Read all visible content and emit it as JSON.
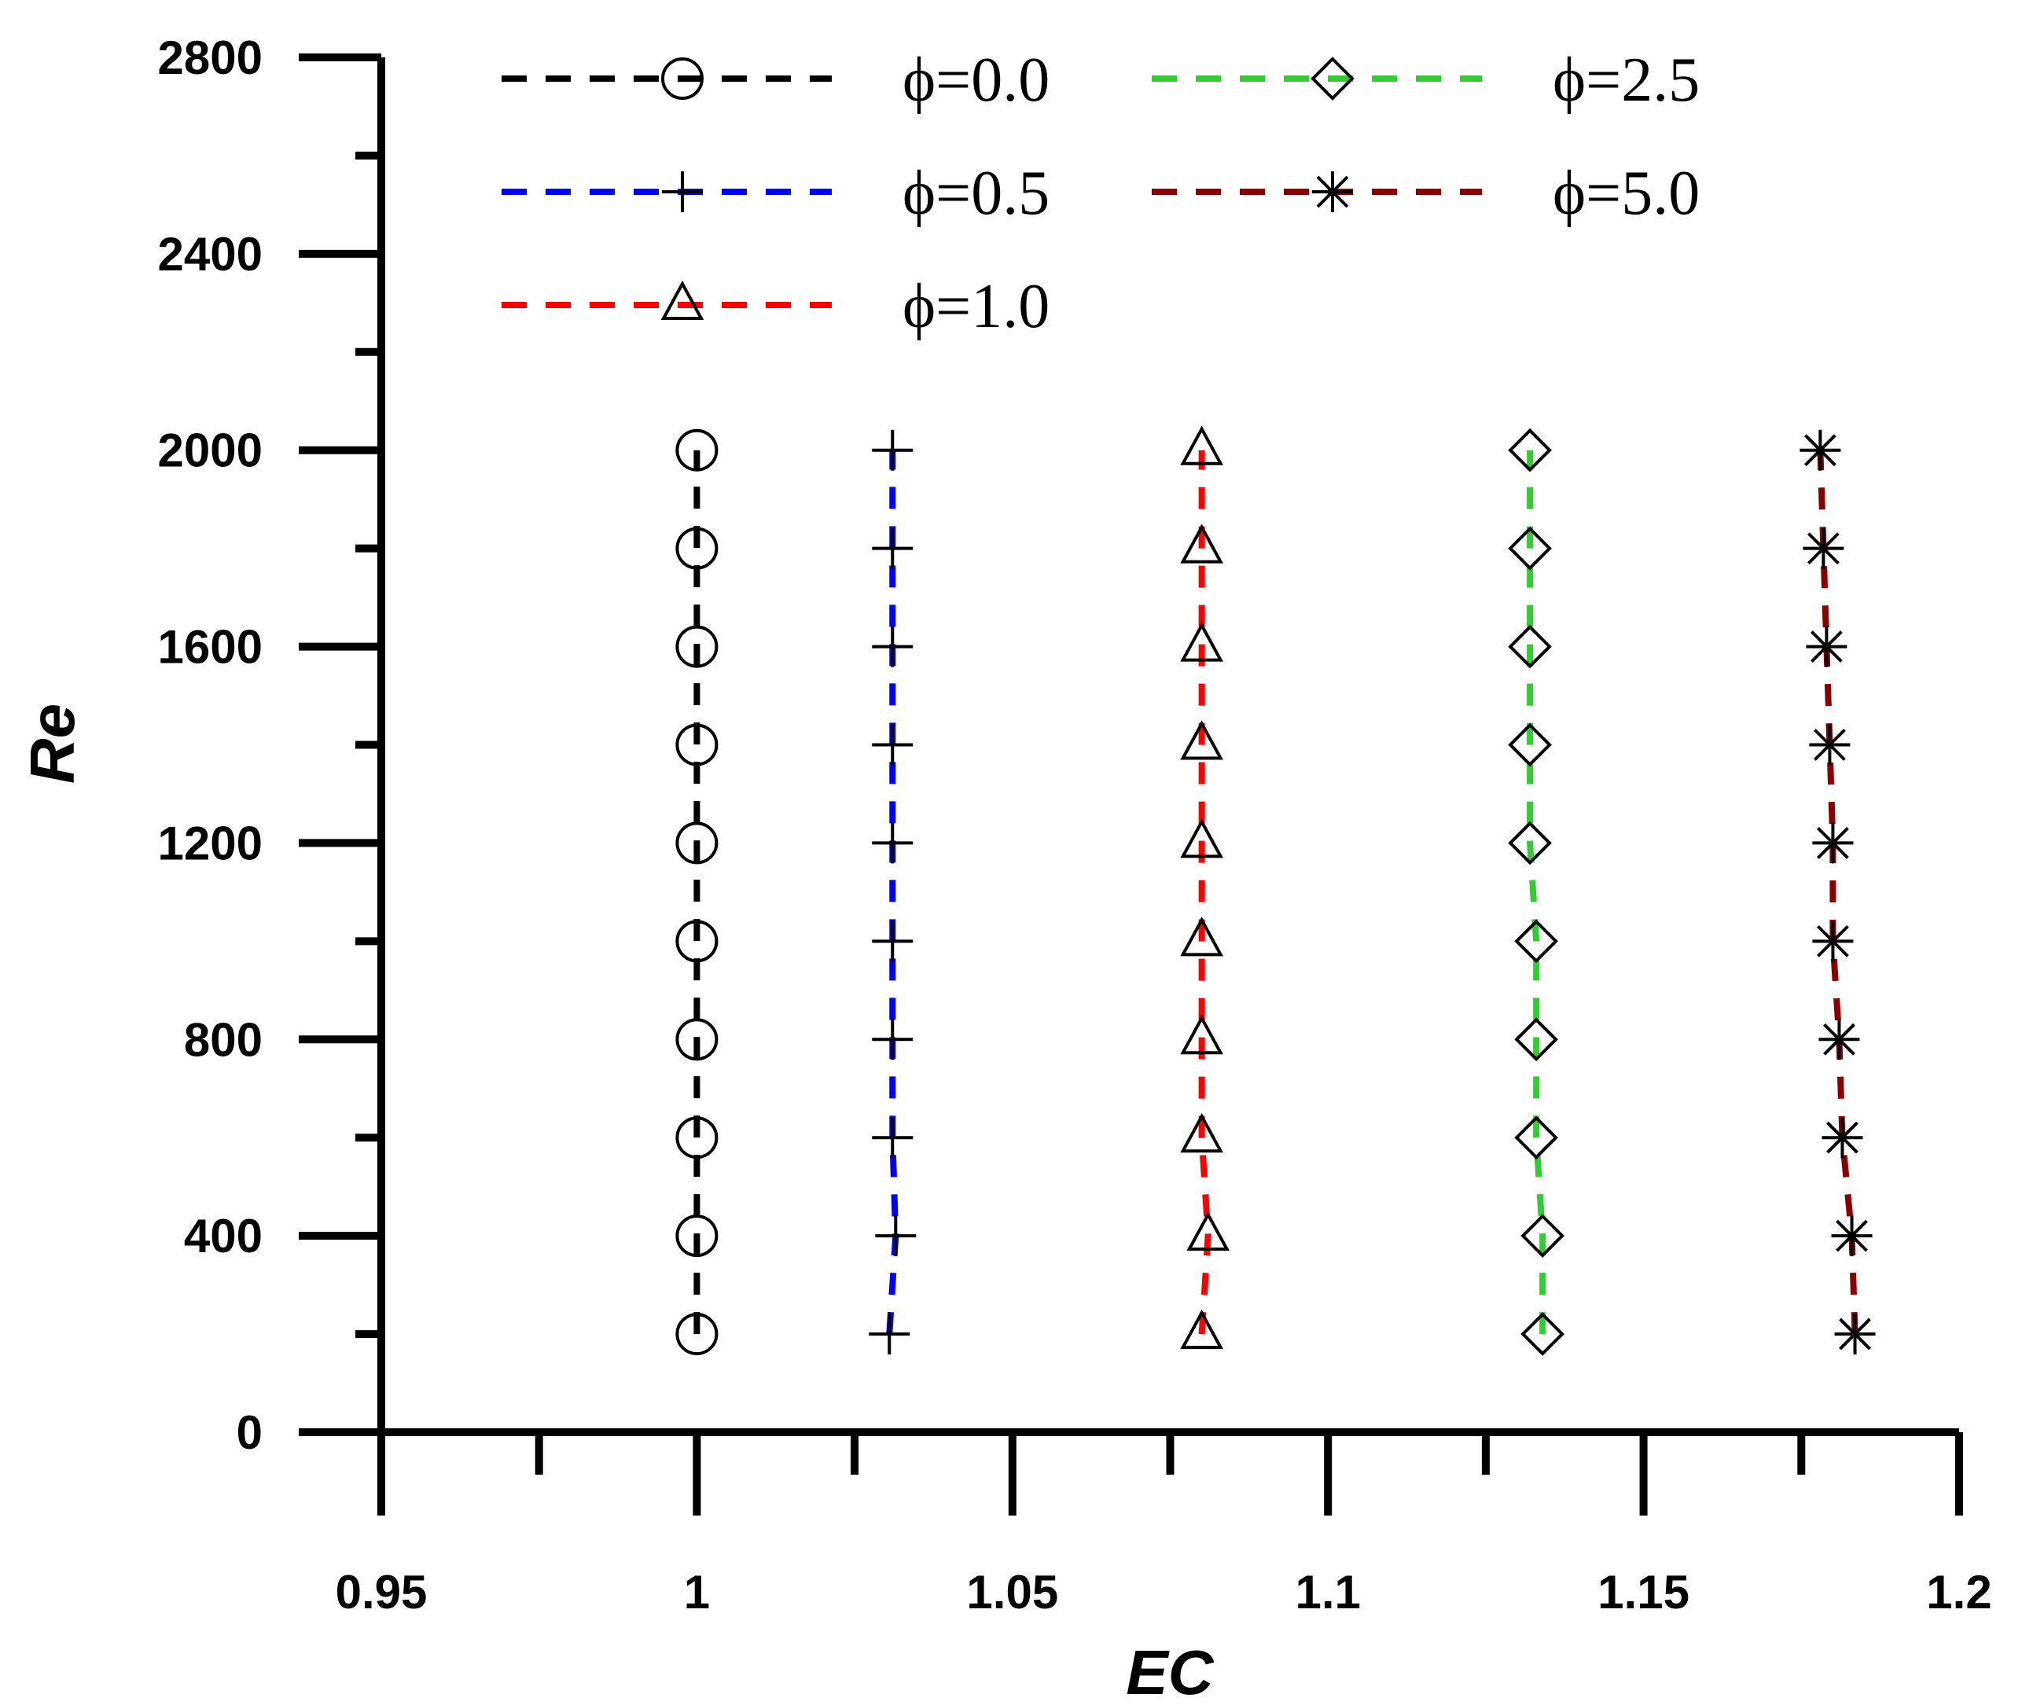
{
  "chart_data": {
    "type": "line",
    "xlabel": "EC",
    "ylabel": "Re",
    "xlim": [
      0.95,
      1.2
    ],
    "ylim": [
      0,
      2800
    ],
    "x_ticks": [
      "0.95",
      "1",
      "1.05",
      "1.1",
      "1.15",
      "1.2"
    ],
    "y_ticks": [
      "0",
      "400",
      "800",
      "1200",
      "1600",
      "2000",
      "2400",
      "2800"
    ],
    "legend_position": "top",
    "series": [
      {
        "name": "ϕ=0.0",
        "color": "#000000",
        "marker": "circle",
        "points": [
          [
            1.0,
            200
          ],
          [
            1.0,
            400
          ],
          [
            1.0,
            600
          ],
          [
            1.0,
            800
          ],
          [
            1.0,
            1000
          ],
          [
            1.0,
            1200
          ],
          [
            1.0,
            1400
          ],
          [
            1.0,
            1600
          ],
          [
            1.0,
            1800
          ],
          [
            1.0,
            2000
          ]
        ]
      },
      {
        "name": "ϕ=0.5",
        "color": "#0000ff",
        "marker": "plus",
        "points": [
          [
            1.0305,
            200
          ],
          [
            1.0315,
            400
          ],
          [
            1.031,
            600
          ],
          [
            1.031,
            800
          ],
          [
            1.031,
            1000
          ],
          [
            1.031,
            1200
          ],
          [
            1.031,
            1400
          ],
          [
            1.031,
            1600
          ],
          [
            1.031,
            1800
          ],
          [
            1.031,
            2000
          ]
        ]
      },
      {
        "name": "ϕ=1.0",
        "color": "#ff0000",
        "marker": "triangle",
        "points": [
          [
            1.08,
            200
          ],
          [
            1.081,
            400
          ],
          [
            1.08,
            600
          ],
          [
            1.08,
            800
          ],
          [
            1.08,
            1000
          ],
          [
            1.08,
            1200
          ],
          [
            1.08,
            1400
          ],
          [
            1.08,
            1600
          ],
          [
            1.08,
            1800
          ],
          [
            1.08,
            2000
          ]
        ]
      },
      {
        "name": "ϕ=2.5",
        "color": "#33cc33",
        "marker": "diamond",
        "points": [
          [
            1.134,
            200
          ],
          [
            1.134,
            400
          ],
          [
            1.133,
            600
          ],
          [
            1.133,
            800
          ],
          [
            1.133,
            1000
          ],
          [
            1.132,
            1200
          ],
          [
            1.132,
            1400
          ],
          [
            1.132,
            1600
          ],
          [
            1.132,
            1800
          ],
          [
            1.132,
            2000
          ]
        ]
      },
      {
        "name": "ϕ=5.0",
        "color": "#8b0000",
        "marker": "asterisk",
        "points": [
          [
            1.1835,
            200
          ],
          [
            1.183,
            400
          ],
          [
            1.1815,
            600
          ],
          [
            1.181,
            800
          ],
          [
            1.18,
            1000
          ],
          [
            1.18,
            1200
          ],
          [
            1.1795,
            1400
          ],
          [
            1.179,
            1600
          ],
          [
            1.1785,
            1800
          ],
          [
            1.178,
            2000
          ]
        ]
      }
    ]
  }
}
